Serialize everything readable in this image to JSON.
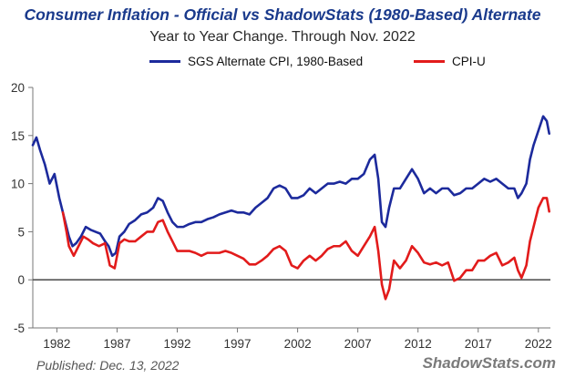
{
  "chart_data": {
    "type": "line",
    "title": "Consumer Inflation - Official vs ShadowStats (1980-Based) Alternate",
    "subtitle": "Year to Year Change. Through Nov. 2022",
    "xlabel": "",
    "ylabel": "",
    "xlim": [
      1980,
      2023
    ],
    "ylim": [
      -5,
      20
    ],
    "x_ticks": [
      1982,
      1987,
      1992,
      1997,
      2002,
      2007,
      2012,
      2017,
      2022
    ],
    "y_ticks": [
      -5,
      0,
      5,
      10,
      15,
      20
    ],
    "legend_position": "top",
    "grid": false,
    "series": [
      {
        "name": "SGS Alternate CPI, 1980-Based",
        "color": "#1c2a9c",
        "x": [
          1980.0,
          1980.3,
          1980.6,
          1981.0,
          1981.4,
          1981.8,
          1982.2,
          1982.6,
          1983.0,
          1983.3,
          1983.6,
          1984.0,
          1984.4,
          1984.8,
          1985.2,
          1985.6,
          1986.0,
          1986.3,
          1986.6,
          1986.9,
          1987.2,
          1987.6,
          1988.0,
          1988.5,
          1989.0,
          1989.5,
          1990.0,
          1990.4,
          1990.8,
          1991.2,
          1991.6,
          1992.0,
          1992.5,
          1993.0,
          1993.5,
          1994.0,
          1994.5,
          1995.0,
          1995.5,
          1996.0,
          1996.5,
          1997.0,
          1997.5,
          1998.0,
          1998.5,
          1999.0,
          1999.5,
          2000.0,
          2000.5,
          2001.0,
          2001.5,
          2002.0,
          2002.5,
          2003.0,
          2003.5,
          2004.0,
          2004.5,
          2005.0,
          2005.5,
          2006.0,
          2006.5,
          2007.0,
          2007.5,
          2008.0,
          2008.4,
          2008.7,
          2009.0,
          2009.3,
          2009.6,
          2010.0,
          2010.5,
          2011.0,
          2011.5,
          2012.0,
          2012.5,
          2013.0,
          2013.5,
          2014.0,
          2014.5,
          2015.0,
          2015.5,
          2016.0,
          2016.5,
          2017.0,
          2017.5,
          2018.0,
          2018.5,
          2019.0,
          2019.5,
          2020.0,
          2020.3,
          2020.6,
          2021.0,
          2021.3,
          2021.6,
          2022.0,
          2022.4,
          2022.7,
          2022.9
        ],
        "values": [
          14.0,
          14.8,
          13.5,
          12.0,
          10.0,
          11.0,
          8.5,
          6.5,
          4.5,
          3.5,
          3.8,
          4.5,
          5.5,
          5.2,
          5.0,
          4.8,
          4.0,
          3.5,
          2.5,
          2.8,
          4.5,
          5.0,
          5.8,
          6.2,
          6.8,
          7.0,
          7.5,
          8.5,
          8.2,
          7.0,
          6.0,
          5.5,
          5.5,
          5.8,
          6.0,
          6.0,
          6.3,
          6.5,
          6.8,
          7.0,
          7.2,
          7.0,
          7.0,
          6.8,
          7.5,
          8.0,
          8.5,
          9.5,
          9.8,
          9.5,
          8.5,
          8.5,
          8.8,
          9.5,
          9.0,
          9.5,
          10.0,
          10.0,
          10.2,
          10.0,
          10.5,
          10.5,
          11.0,
          12.5,
          13.0,
          10.5,
          6.0,
          5.5,
          7.5,
          9.5,
          9.5,
          10.5,
          11.5,
          10.5,
          9.0,
          9.5,
          9.0,
          9.5,
          9.5,
          8.8,
          9.0,
          9.5,
          9.5,
          10.0,
          10.5,
          10.2,
          10.5,
          10.0,
          9.5,
          9.5,
          8.5,
          9.0,
          10.0,
          12.5,
          14.0,
          15.5,
          17.0,
          16.5,
          15.2
        ]
      },
      {
        "name": "CPI-U",
        "color": "#e21b1b",
        "x": [
          1982.5,
          1982.8,
          1983.0,
          1983.4,
          1983.8,
          1984.2,
          1984.6,
          1985.0,
          1985.5,
          1986.0,
          1986.4,
          1986.8,
          1987.2,
          1987.6,
          1988.0,
          1988.5,
          1989.0,
          1989.5,
          1990.0,
          1990.4,
          1990.8,
          1991.2,
          1991.6,
          1992.0,
          1992.5,
          1993.0,
          1993.5,
          1994.0,
          1994.5,
          1995.0,
          1995.5,
          1996.0,
          1996.5,
          1997.0,
          1997.5,
          1998.0,
          1998.5,
          1999.0,
          1999.5,
          2000.0,
          2000.5,
          2001.0,
          2001.5,
          2002.0,
          2002.5,
          2003.0,
          2003.5,
          2004.0,
          2004.5,
          2005.0,
          2005.5,
          2006.0,
          2006.5,
          2007.0,
          2007.5,
          2008.0,
          2008.4,
          2008.7,
          2009.0,
          2009.3,
          2009.6,
          2010.0,
          2010.5,
          2011.0,
          2011.5,
          2012.0,
          2012.5,
          2013.0,
          2013.5,
          2014.0,
          2014.5,
          2015.0,
          2015.5,
          2016.0,
          2016.5,
          2017.0,
          2017.5,
          2018.0,
          2018.5,
          2019.0,
          2019.5,
          2020.0,
          2020.3,
          2020.6,
          2021.0,
          2021.3,
          2021.6,
          2022.0,
          2022.4,
          2022.7,
          2022.9
        ],
        "values": [
          7.0,
          5.0,
          3.5,
          2.5,
          3.5,
          4.5,
          4.2,
          3.8,
          3.5,
          3.8,
          1.5,
          1.2,
          3.8,
          4.2,
          4.0,
          4.0,
          4.5,
          5.0,
          5.0,
          6.0,
          6.2,
          5.0,
          4.0,
          3.0,
          3.0,
          3.0,
          2.8,
          2.5,
          2.8,
          2.8,
          2.8,
          3.0,
          2.8,
          2.5,
          2.2,
          1.6,
          1.6,
          2.0,
          2.5,
          3.2,
          3.5,
          3.0,
          1.5,
          1.2,
          2.0,
          2.5,
          2.0,
          2.5,
          3.2,
          3.5,
          3.5,
          4.0,
          3.0,
          2.5,
          3.5,
          4.5,
          5.5,
          3.0,
          -0.5,
          -2.0,
          -1.0,
          2.0,
          1.2,
          2.0,
          3.5,
          2.8,
          1.8,
          1.6,
          1.8,
          1.5,
          1.8,
          -0.1,
          0.2,
          1.0,
          1.0,
          2.0,
          2.0,
          2.5,
          2.8,
          1.5,
          1.8,
          2.3,
          1.0,
          0.2,
          1.5,
          4.0,
          5.5,
          7.5,
          8.5,
          8.5,
          7.1
        ]
      }
    ]
  },
  "footer": {
    "published": "Published: Dec. 13, 2022",
    "source": "ShadowStats.com"
  }
}
